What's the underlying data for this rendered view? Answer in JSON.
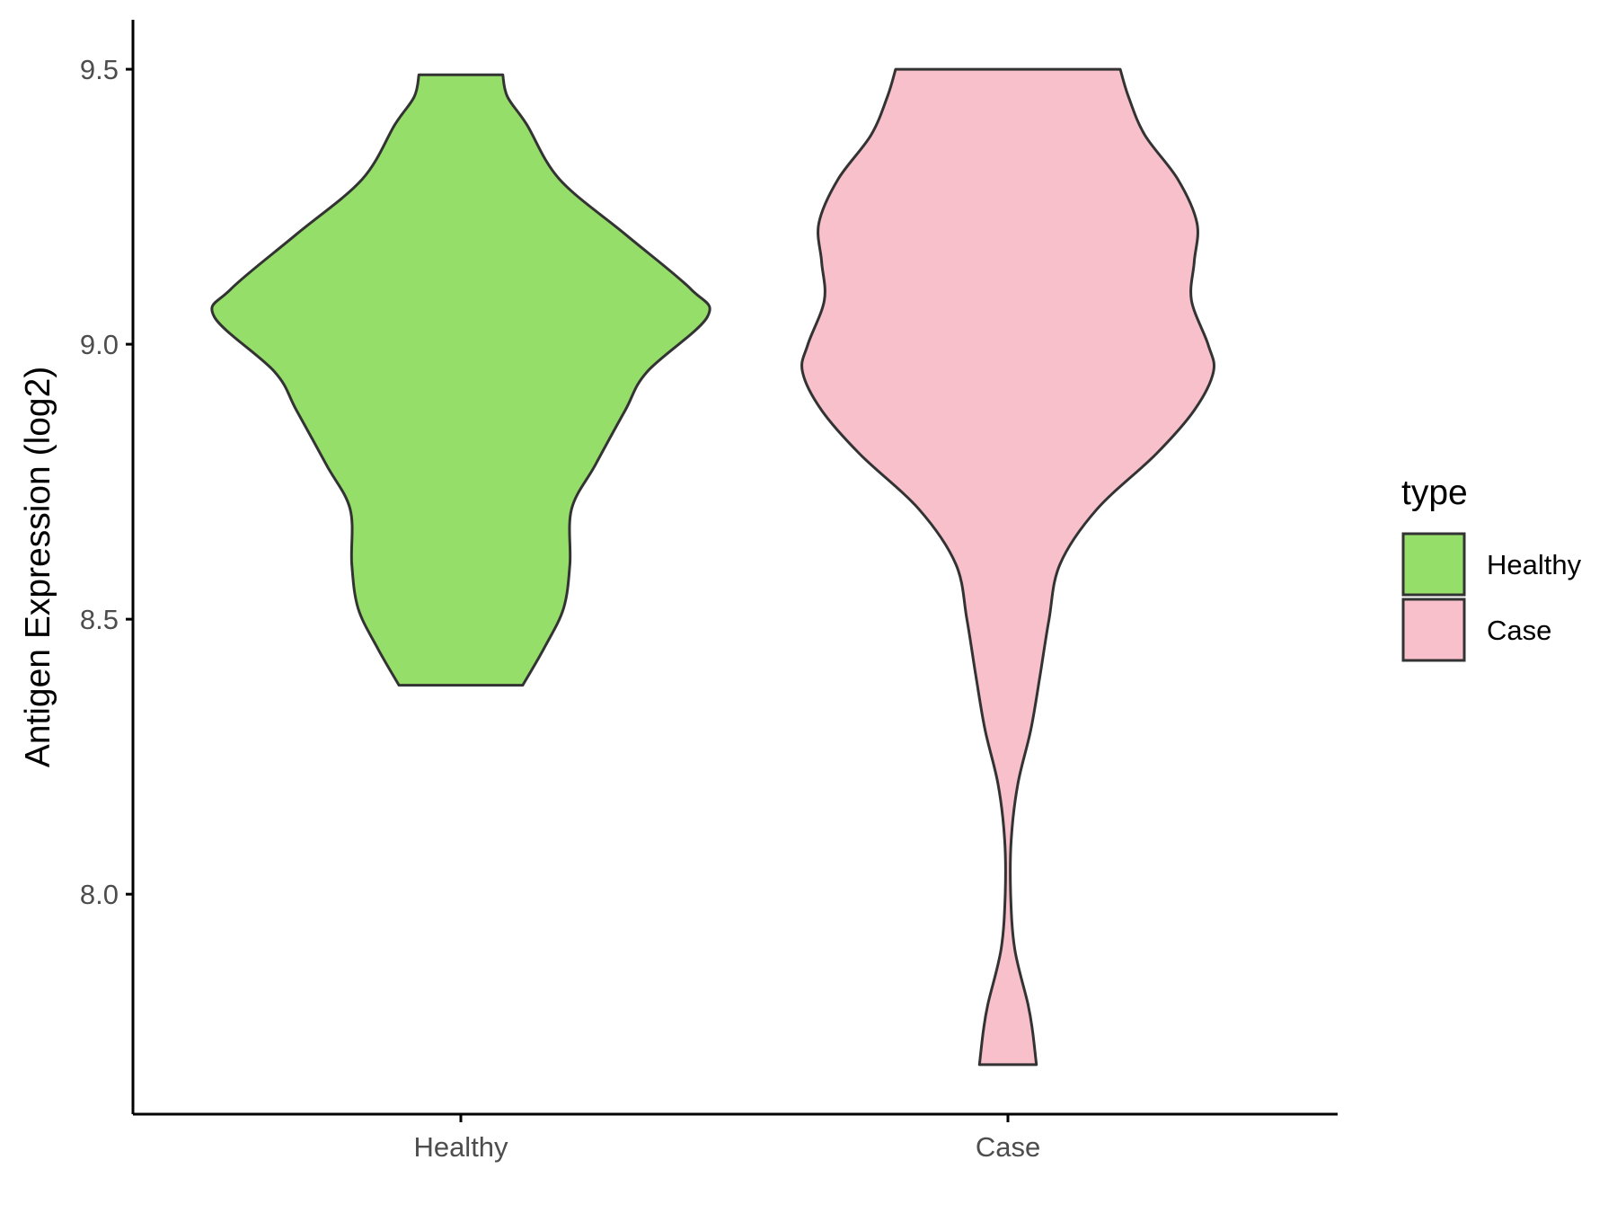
{
  "chart_data": {
    "type": "violin",
    "ylabel": "Antigen Expression (log2)",
    "xlabel": "",
    "ylim": [
      7.6,
      9.59
    ],
    "yticks": [
      8.0,
      8.5,
      9.0,
      9.5
    ],
    "ytick_labels": [
      "8.0",
      "8.5",
      "9.0",
      "9.5"
    ],
    "categories": [
      "Healthy",
      "Case"
    ],
    "legend": {
      "title": "type",
      "placement": "right",
      "items": [
        {
          "label": "Healthy",
          "color": "#95de69"
        },
        {
          "label": "Case",
          "color": "#f7c0cb"
        }
      ]
    },
    "series": [
      {
        "name": "Healthy",
        "color": "#95de69",
        "min": 8.38,
        "max": 9.49,
        "density": [
          [
            8.38,
            0.226
          ],
          [
            8.45,
            0.307
          ],
          [
            8.52,
            0.375
          ],
          [
            8.6,
            0.398
          ],
          [
            8.7,
            0.404
          ],
          [
            8.78,
            0.49
          ],
          [
            8.88,
            0.6
          ],
          [
            8.95,
            0.68
          ],
          [
            9.05,
            0.9
          ],
          [
            9.1,
            0.84
          ],
          [
            9.2,
            0.6
          ],
          [
            9.3,
            0.36
          ],
          [
            9.4,
            0.24
          ],
          [
            9.45,
            0.17
          ],
          [
            9.49,
            0.153
          ]
        ]
      },
      {
        "name": "Case",
        "color": "#f7c0cb",
        "min": 7.69,
        "max": 9.5,
        "density": [
          [
            7.69,
            0.104
          ],
          [
            7.75,
            0.09
          ],
          [
            7.8,
            0.073
          ],
          [
            7.9,
            0.025
          ],
          [
            8.0,
            0.01
          ],
          [
            8.1,
            0.012
          ],
          [
            8.2,
            0.036
          ],
          [
            8.3,
            0.084
          ],
          [
            8.4,
            0.118
          ],
          [
            8.5,
            0.15
          ],
          [
            8.6,
            0.19
          ],
          [
            8.7,
            0.325
          ],
          [
            8.8,
            0.54
          ],
          [
            8.88,
            0.68
          ],
          [
            8.95,
            0.75
          ],
          [
            9.0,
            0.73
          ],
          [
            9.08,
            0.67
          ],
          [
            9.15,
            0.68
          ],
          [
            9.22,
            0.69
          ],
          [
            9.3,
            0.62
          ],
          [
            9.38,
            0.5
          ],
          [
            9.45,
            0.44
          ],
          [
            9.5,
            0.41
          ]
        ]
      }
    ]
  }
}
